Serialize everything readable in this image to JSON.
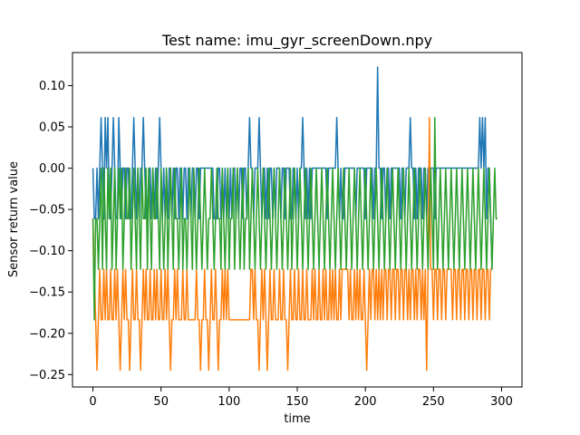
{
  "chart_data": {
    "type": "line",
    "title": "Test name: imu_gyr_screenDown.npy",
    "xlabel": "time",
    "ylabel": "Sensor return value",
    "xlim": [
      -15,
      315
    ],
    "ylim": [
      -0.265,
      0.14
    ],
    "xticks": [
      0,
      50,
      100,
      150,
      200,
      250,
      300
    ],
    "yticks": [
      -0.25,
      -0.2,
      -0.15,
      -0.1,
      -0.05,
      0.0,
      0.05,
      0.1
    ],
    "ytick_labels": [
      "−0.25",
      "−0.20",
      "−0.15",
      "−0.10",
      "−0.05",
      "0.00",
      "0.05",
      "0.10"
    ],
    "grid": false,
    "legend": "none",
    "x": {
      "start": 0,
      "end": 299,
      "step": 1
    },
    "series": [
      {
        "color": "#1f77b4",
        "values": [
          0.0,
          -0.0612,
          -0.0612,
          0.0,
          -0.0612,
          0.0,
          0.0612,
          0.0,
          -0.0612,
          0.0612,
          0.0,
          0.0612,
          -0.0612,
          -0.0612,
          0.0,
          0.0612,
          0.0,
          -0.0612,
          -0.0612,
          0.0612,
          0.0,
          -0.0612,
          0.0,
          0.0,
          -0.0612,
          0.0,
          0.0,
          -0.0612,
          -0.0612,
          0.0,
          0.0612,
          0.0,
          -0.0612,
          0.0,
          -0.0612,
          0.0,
          0.0,
          0.0612,
          0.0,
          -0.0612,
          -0.0612,
          0.0,
          0.0,
          -0.0612,
          0.0,
          -0.0612,
          0.0,
          -0.0612,
          0.0,
          0.0612,
          0.0,
          -0.0612,
          0.0,
          -0.0612,
          0.0,
          -0.0612,
          0.0,
          0.0,
          -0.0612,
          0.0,
          -0.0612,
          0.0,
          0.0,
          -0.0612,
          0.0,
          0.0,
          -0.0612,
          0.0,
          0.0,
          -0.0612,
          0.0,
          0.0,
          -0.0612,
          0.0,
          0.0,
          -0.0612,
          0.0,
          0.0,
          -0.0612,
          0.0,
          0.0,
          0.0,
          0.0,
          0.0,
          0.0,
          0.0,
          0.0,
          0.0,
          0.0,
          -0.0612,
          -0.0612,
          -0.0612,
          0.0,
          0.0,
          -0.0612,
          0.0,
          -0.0612,
          0.0,
          -0.0612,
          0.0,
          -0.0612,
          0.0,
          -0.0612,
          0.0,
          0.0,
          -0.0612,
          0.0,
          -0.0612,
          0.0,
          0.0,
          -0.0612,
          0.0,
          0.0,
          -0.0612,
          0.0,
          0.0612,
          0.0,
          0.0,
          -0.0612,
          0.0,
          0.0,
          0.0,
          0.0612,
          0.0,
          -0.0612,
          0.0,
          0.0,
          -0.0612,
          0.0,
          -0.0612,
          0.0,
          0.0,
          -0.0612,
          0.0,
          -0.0612,
          0.0,
          0.0,
          0.0,
          -0.0612,
          0.0,
          0.0,
          -0.0612,
          0.0,
          0.0,
          0.0,
          -0.0612,
          -0.0612,
          0.0,
          0.0,
          -0.0612,
          0.0,
          -0.0612,
          0.0,
          0.0,
          0.0612,
          0.0,
          -0.0612,
          0.0,
          -0.0612,
          0.0,
          -0.0612,
          0.0,
          0.0,
          0.0,
          0.0,
          0.0,
          0.0,
          0.0,
          0.0,
          0.0,
          0.0,
          0.0,
          -0.0612,
          0.0,
          0.0,
          0.0,
          0.0,
          0.0,
          0.0,
          0.0612,
          0.0,
          -0.0612,
          0.0,
          -0.0612,
          -0.0612,
          0.0,
          0.0,
          0.0,
          0.0,
          0.0,
          0.0,
          0.0,
          0.0,
          -0.0612,
          0.0,
          0.0,
          0.0,
          0.0,
          0.0,
          0.0,
          -0.0612,
          0.0,
          0.0,
          0.0,
          0.0,
          0.0,
          -0.0612,
          0.0,
          0.0,
          0.1224,
          0.0,
          0.0,
          -0.0612,
          0.0,
          0.0,
          -0.0612,
          0.0,
          0.0,
          -0.0612,
          0.0,
          0.0,
          0.0,
          0.0,
          0.0,
          0.0,
          0.0,
          -0.0612,
          0.0,
          0.0,
          -0.0612,
          0.0,
          0.0,
          0.0,
          0.0612,
          0.0,
          0.0,
          -0.0612,
          0.0,
          -0.0612,
          0.0,
          0.0,
          0.0,
          -0.0612,
          0.0,
          0.0,
          -0.0612,
          0.0,
          0.0,
          0.0,
          0.0,
          0.0,
          -0.0612,
          0.0,
          0.0,
          0.0,
          0.0,
          0.0,
          0.0,
          0.0,
          0.0,
          0.0,
          0.0,
          0.0,
          0.0,
          0.0,
          0.0,
          0.0,
          0.0,
          0.0,
          0.0,
          0.0,
          0.0,
          0.0,
          0.0,
          0.0,
          0.0,
          0.0,
          0.0,
          0.0,
          0.0,
          0.0,
          0.0,
          0.0,
          0.0,
          0.0612,
          0.0,
          0.0612,
          0.0,
          0.0612,
          -0.0612,
          0.0,
          0.0,
          -0.0612,
          -0.1224
        ]
      },
      {
        "color": "#ff7f0e",
        "values": [
          -0.0612,
          -0.1224,
          -0.1836,
          -0.2448,
          -0.1836,
          -0.1224,
          -0.1836,
          -0.1836,
          -0.1224,
          -0.1836,
          -0.1224,
          -0.1836,
          -0.1836,
          -0.1224,
          -0.1836,
          -0.1836,
          -0.1224,
          -0.1836,
          -0.1224,
          -0.1836,
          -0.2448,
          -0.1836,
          -0.1224,
          -0.1836,
          -0.1224,
          -0.1836,
          -0.1836,
          -0.2448,
          -0.1836,
          -0.1224,
          -0.1836,
          -0.1836,
          -0.1224,
          -0.1836,
          -0.1836,
          -0.2448,
          -0.1836,
          -0.1224,
          -0.1836,
          -0.1224,
          -0.1836,
          -0.1836,
          -0.1224,
          -0.1836,
          -0.1836,
          -0.1224,
          -0.1836,
          -0.1224,
          -0.1836,
          -0.1836,
          -0.1224,
          -0.1836,
          -0.1836,
          -0.1224,
          -0.1836,
          -0.1224,
          -0.1836,
          -0.2448,
          -0.1836,
          -0.1836,
          -0.1224,
          -0.1836,
          -0.1224,
          -0.1836,
          -0.1836,
          -0.1836,
          -0.1224,
          -0.1836,
          -0.1836,
          -0.1224,
          -0.1836,
          -0.1836,
          -0.1836,
          -0.1836,
          -0.1836,
          -0.1836,
          -0.1224,
          -0.1836,
          -0.1836,
          -0.2448,
          -0.1836,
          -0.1836,
          -0.1224,
          -0.1836,
          -0.1836,
          -0.2448,
          -0.1836,
          -0.1224,
          -0.1836,
          -0.1836,
          -0.1224,
          -0.1836,
          -0.2448,
          -0.1836,
          -0.1836,
          -0.1224,
          -0.1836,
          -0.1224,
          -0.1836,
          -0.1224,
          -0.1836,
          -0.1836,
          -0.1836,
          -0.1836,
          -0.1836,
          -0.1836,
          -0.1836,
          -0.1836,
          -0.1836,
          -0.1836,
          -0.1836,
          -0.1836,
          -0.1836,
          -0.1836,
          -0.1836,
          -0.1836,
          -0.1224,
          -0.1224,
          -0.1836,
          -0.1224,
          -0.1836,
          -0.1836,
          -0.2448,
          -0.1836,
          -0.1224,
          -0.1836,
          -0.1224,
          -0.1836,
          -0.2448,
          -0.1836,
          -0.1224,
          -0.1836,
          -0.1836,
          -0.1224,
          -0.1836,
          -0.1836,
          -0.1836,
          -0.1224,
          -0.1836,
          -0.1836,
          -0.1224,
          -0.1836,
          -0.1836,
          -0.2448,
          -0.1836,
          -0.1224,
          -0.1836,
          -0.1836,
          -0.1224,
          -0.1836,
          -0.1836,
          -0.1224,
          -0.1836,
          -0.1836,
          -0.1224,
          -0.1836,
          -0.1836,
          -0.1224,
          -0.1836,
          -0.1836,
          -0.1836,
          -0.1224,
          -0.1836,
          -0.1224,
          -0.1836,
          -0.1836,
          -0.1224,
          -0.1836,
          -0.1836,
          -0.1224,
          -0.1836,
          -0.1224,
          -0.1836,
          -0.1836,
          -0.1224,
          -0.1836,
          -0.1224,
          -0.1836,
          -0.1224,
          -0.1836,
          -0.1836,
          -0.1224,
          -0.1836,
          -0.1224,
          -0.1224,
          -0.1224,
          -0.1224,
          -0.1224,
          -0.1836,
          -0.1224,
          -0.1836,
          -0.1836,
          -0.1224,
          -0.1836,
          -0.1224,
          -0.1836,
          -0.1224,
          -0.1836,
          -0.1836,
          -0.1224,
          -0.1836,
          -0.2448,
          -0.1836,
          -0.1224,
          -0.1836,
          -0.1224,
          -0.1224,
          -0.1836,
          -0.1224,
          -0.1836,
          -0.1224,
          -0.1836,
          -0.1224,
          -0.1836,
          -0.1224,
          -0.1224,
          -0.1836,
          -0.1224,
          -0.1224,
          -0.1836,
          -0.1224,
          -0.1224,
          -0.1836,
          -0.1224,
          -0.1224,
          -0.1836,
          -0.1224,
          -0.1224,
          -0.1836,
          -0.1224,
          -0.1224,
          -0.1836,
          -0.1224,
          -0.1836,
          -0.1224,
          -0.1224,
          -0.1836,
          -0.1224,
          -0.1836,
          -0.1224,
          -0.1224,
          -0.1836,
          -0.1224,
          -0.1836,
          -0.1224,
          -0.2448,
          -0.1224,
          0.0612,
          -0.1224,
          -0.1224,
          -0.1836,
          -0.1224,
          -0.1224,
          -0.1836,
          -0.1224,
          -0.1224,
          -0.1836,
          -0.1224,
          -0.1224,
          -0.1836,
          -0.1224,
          -0.1224,
          -0.1224,
          -0.1224,
          -0.1836,
          -0.1224,
          -0.1224,
          -0.1836,
          -0.1224,
          -0.1224,
          -0.1836,
          -0.1224,
          -0.1224,
          -0.1836,
          -0.1224,
          -0.1224,
          -0.1836,
          -0.1224,
          -0.1224,
          -0.1836,
          -0.1224,
          -0.1224,
          -0.1836,
          -0.1224,
          -0.1224,
          -0.1836,
          -0.1224,
          -0.1224,
          -0.1836,
          -0.1224,
          -0.1224,
          -0.1836,
          -0.1224,
          -0.1224
        ]
      },
      {
        "color": "#2ca02c",
        "values": [
          -0.0612,
          -0.1836,
          -0.0612,
          -0.0612,
          -0.1224,
          -0.0612,
          0.0,
          -0.1224,
          0.0,
          -0.0612,
          -0.1224,
          0.0,
          -0.0612,
          0.0,
          -0.1224,
          -0.0612,
          0.0,
          -0.1224,
          -0.0612,
          0.0,
          -0.0612,
          0.0,
          -0.1224,
          -0.0612,
          0.0,
          -0.0612,
          -0.0612,
          0.0,
          -0.1224,
          -0.0612,
          0.0,
          -0.0612,
          -0.1224,
          0.0,
          -0.0612,
          -0.1224,
          0.0,
          -0.0612,
          -0.0612,
          0.0,
          -0.1224,
          0.0,
          -0.0612,
          -0.1224,
          0.0,
          -0.0612,
          -0.0612,
          0.0,
          -0.0612,
          -0.1224,
          0.0,
          -0.0612,
          -0.1224,
          -0.0612,
          0.0,
          -0.1224,
          -0.0612,
          0.0,
          -0.0612,
          -0.1224,
          0.0,
          -0.0612,
          -0.0612,
          -0.1224,
          -0.0612,
          0.0,
          -0.1224,
          -0.0612,
          -0.0612,
          -0.1224,
          -0.0612,
          0.0,
          -0.0612,
          -0.1224,
          0.0,
          -0.0612,
          -0.1224,
          -0.0612,
          0.0,
          -0.0612,
          -0.1224,
          -0.0612,
          0.0,
          -0.0612,
          -0.1224,
          -0.0612,
          -0.0612,
          0.0,
          -0.0612,
          -0.1224,
          -0.0612,
          0.0,
          -0.0612,
          -0.0612,
          -0.1224,
          0.0,
          -0.0612,
          -0.1224,
          -0.0612,
          0.0,
          -0.1224,
          -0.0612,
          -0.0612,
          0.0,
          -0.1224,
          -0.0612,
          0.0,
          -0.0612,
          -0.1224,
          -0.0612,
          0.0,
          -0.1224,
          -0.0612,
          -0.0612,
          0.0,
          -0.1224,
          -0.0612,
          0.0,
          -0.0612,
          -0.1224,
          -0.0612,
          0.0,
          -0.0612,
          -0.1224,
          -0.0612,
          0.0,
          -0.0612,
          -0.1224,
          -0.0612,
          0.0,
          -0.0612,
          -0.1224,
          -0.0612,
          0.0,
          -0.0612,
          -0.1224,
          -0.0612,
          0.0,
          -0.0612,
          -0.1224,
          -0.0612,
          0.0,
          -0.0612,
          -0.1224,
          -0.0612,
          0.0,
          -0.1224,
          -0.0612,
          0.0,
          -0.0612,
          -0.1224,
          -0.0612,
          0.0,
          -0.0612,
          -0.1224,
          -0.0612,
          0.0,
          -0.0612,
          -0.1224,
          -0.0612,
          0.0,
          -0.0612,
          -0.1224,
          -0.0612,
          0.0,
          -0.0612,
          -0.1224,
          -0.0612,
          0.0,
          -0.0612,
          -0.1224,
          -0.0612,
          0.0,
          -0.0612,
          -0.1224,
          -0.0612,
          0.0,
          -0.0612,
          -0.1224,
          -0.0612,
          0.0,
          -0.0612,
          -0.1224,
          -0.0612,
          0.0,
          -0.0612,
          -0.1224,
          -0.0612,
          0.0,
          -0.0612,
          -0.1224,
          -0.0612,
          0.0,
          -0.0612,
          -0.1224,
          -0.0612,
          0.0,
          -0.0612,
          -0.1224,
          -0.0612,
          0.0,
          -0.0612,
          -0.1224,
          -0.0612,
          0.0,
          -0.0612,
          -0.1224,
          -0.0612,
          0.0,
          -0.0612,
          -0.1224,
          -0.0612,
          0.0,
          -0.0612,
          -0.1224,
          -0.0612,
          0.0,
          -0.0612,
          -0.1224,
          -0.0612,
          0.0,
          -0.0612,
          -0.1224,
          -0.0612,
          0.0,
          -0.0612,
          -0.1224,
          -0.0612,
          0.0,
          -0.0612,
          -0.1224,
          -0.0612,
          0.0,
          -0.0612,
          -0.1224,
          -0.0612,
          0.0,
          -0.0612,
          -0.1224,
          -0.0612,
          0.0,
          -0.0612,
          -0.1224,
          -0.0612,
          0.0,
          -0.0612,
          -0.1224,
          -0.0612,
          0.0,
          -0.0612,
          -0.1224,
          0.0612,
          -0.0612,
          -0.1224,
          -0.0612,
          0.0,
          -0.0612,
          -0.1224,
          -0.0612,
          0.0,
          -0.0612,
          -0.1224,
          -0.0612,
          0.0,
          -0.0612,
          -0.1224,
          -0.0612,
          0.0,
          -0.0612,
          -0.1224,
          -0.0612,
          0.0,
          -0.0612,
          -0.1224,
          -0.0612,
          0.0,
          -0.0612,
          -0.1224,
          -0.0612,
          0.0,
          -0.0612,
          -0.1224,
          -0.0612,
          0.0,
          -0.0612,
          -0.1224,
          -0.0612,
          0.0,
          -0.0612,
          -0.1224,
          -0.0612,
          0.0,
          -0.0612,
          -0.1224,
          -0.0612,
          0.0,
          -0.0612,
          -0.0612
        ]
      }
    ]
  }
}
